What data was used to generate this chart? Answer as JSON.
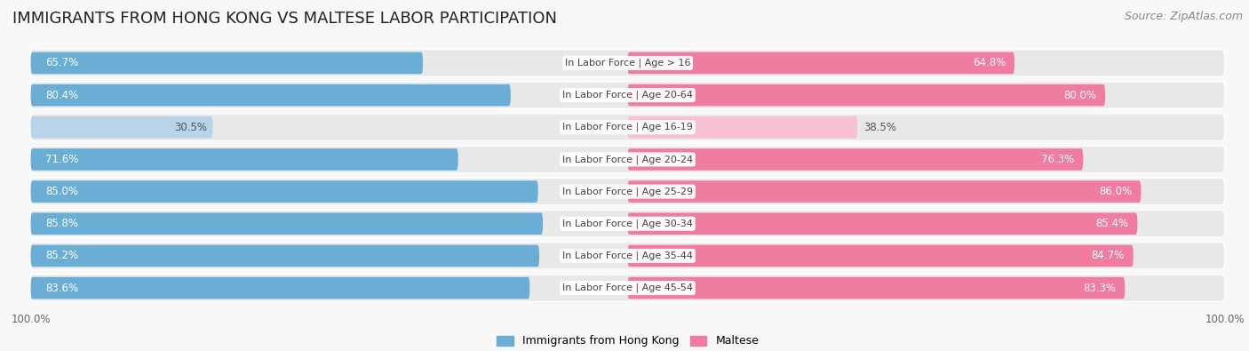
{
  "title": "IMMIGRANTS FROM HONG KONG VS MALTESE LABOR PARTICIPATION",
  "source": "Source: ZipAtlas.com",
  "categories": [
    "In Labor Force | Age > 16",
    "In Labor Force | Age 20-64",
    "In Labor Force | Age 16-19",
    "In Labor Force | Age 20-24",
    "In Labor Force | Age 25-29",
    "In Labor Force | Age 30-34",
    "In Labor Force | Age 35-44",
    "In Labor Force | Age 45-54"
  ],
  "hk_values": [
    65.7,
    80.4,
    30.5,
    71.6,
    85.0,
    85.8,
    85.2,
    83.6
  ],
  "maltese_values": [
    64.8,
    80.0,
    38.5,
    76.3,
    86.0,
    85.4,
    84.7,
    83.3
  ],
  "hk_color_strong": "#6aaed6",
  "hk_color_light": "#b8d4ea",
  "maltese_color_strong": "#f07ca0",
  "maltese_color_light": "#f8c0d4",
  "label_color_dark": "#555555",
  "label_color_white": "#ffffff",
  "bg_pill_color": "#e8e8e8",
  "bg_fig_color": "#f8f8f8",
  "bar_height": 0.68,
  "max_val": 100.0,
  "legend_hk": "Immigrants from Hong Kong",
  "legend_maltese": "Maltese",
  "title_fontsize": 13,
  "source_fontsize": 9,
  "bar_label_fontsize": 8.5,
  "cat_label_fontsize": 8,
  "axis_label_fontsize": 8.5,
  "light_threshold": 50.0
}
